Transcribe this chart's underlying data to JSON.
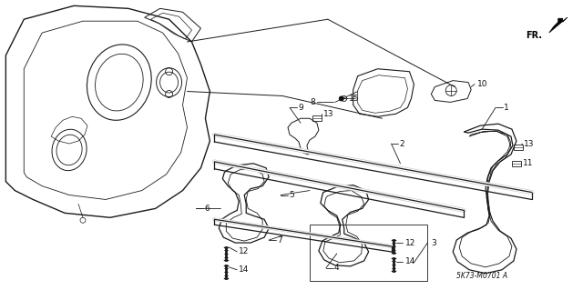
{
  "bg_color": "#ffffff",
  "line_color": "#1a1a1a",
  "text_color": "#111111",
  "fig_width": 6.4,
  "fig_height": 3.19,
  "dpi": 100,
  "diagram_code": "5K73-M0701 A"
}
